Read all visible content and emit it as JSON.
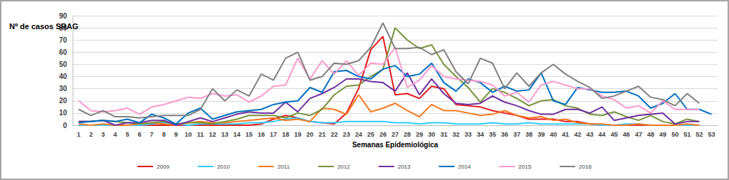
{
  "chart_data": {
    "type": "line",
    "y_label": "Nº de casos SRAG",
    "x_label": "Semanas Epidemiológica",
    "categories": [
      1,
      2,
      3,
      4,
      5,
      6,
      7,
      8,
      9,
      10,
      11,
      12,
      13,
      14,
      15,
      16,
      17,
      18,
      19,
      20,
      21,
      22,
      23,
      24,
      25,
      26,
      27,
      28,
      29,
      30,
      31,
      32,
      33,
      34,
      35,
      36,
      37,
      38,
      39,
      40,
      41,
      42,
      43,
      44,
      45,
      46,
      47,
      48,
      49,
      50,
      51,
      52,
      53
    ],
    "ylim": [
      0,
      90
    ],
    "yticks": [
      0,
      10,
      20,
      30,
      40,
      50,
      60,
      70,
      80,
      90
    ],
    "grid": true,
    "legend": "bottom",
    "series": [
      {
        "name": "2009",
        "color": "#e31a1c",
        "values": [
          0,
          0,
          0,
          0,
          0,
          0,
          0,
          0,
          0,
          0,
          0,
          0,
          0,
          0,
          0,
          1,
          5,
          8,
          6,
          3,
          2,
          1,
          10,
          30,
          62,
          73,
          25,
          26,
          22,
          32,
          30,
          17,
          16,
          15,
          12,
          10,
          8,
          5,
          5,
          5,
          3,
          3,
          1,
          0,
          0,
          0,
          0,
          0,
          0,
          0,
          0,
          0,
          null
        ]
      },
      {
        "name": "2010",
        "color": "#33ccff",
        "values": [
          0,
          0,
          0,
          0,
          0,
          0,
          1,
          2,
          1,
          0,
          1,
          1,
          1,
          1,
          2,
          2,
          3,
          5,
          6,
          3,
          2,
          2,
          3,
          3,
          3,
          3,
          2,
          2,
          1,
          2,
          2,
          1,
          1,
          1,
          2,
          1,
          1,
          2,
          1,
          1,
          1,
          1,
          1,
          0,
          0,
          1,
          1,
          0,
          0,
          0,
          0,
          0,
          null
        ]
      },
      {
        "name": "2011",
        "color": "#f47920",
        "values": [
          1,
          0,
          1,
          0,
          0,
          1,
          2,
          1,
          0,
          2,
          3,
          2,
          2,
          3,
          4,
          5,
          6,
          4,
          5,
          3,
          14,
          13,
          9,
          25,
          11,
          14,
          18,
          12,
          7,
          17,
          12,
          12,
          10,
          8,
          9,
          12,
          8,
          6,
          7,
          4,
          5,
          2,
          1,
          1,
          0,
          0,
          1,
          0,
          0,
          0,
          1,
          0,
          null
        ]
      },
      {
        "name": "2012",
        "color": "#77933c",
        "values": [
          3,
          3,
          4,
          3,
          2,
          1,
          2,
          3,
          1,
          2,
          2,
          1,
          3,
          5,
          8,
          8,
          8,
          6,
          10,
          8,
          13,
          25,
          32,
          33,
          40,
          46,
          80,
          70,
          63,
          66,
          50,
          40,
          31,
          19,
          30,
          27,
          22,
          16,
          20,
          21,
          16,
          14,
          9,
          8,
          11,
          7,
          4,
          8,
          3,
          1,
          5,
          3,
          null
        ]
      },
      {
        "name": "2013",
        "color": "#7030a0",
        "values": [
          3,
          3,
          4,
          0,
          2,
          2,
          4,
          4,
          0,
          3,
          6,
          3,
          6,
          9,
          11,
          10,
          10,
          19,
          11,
          22,
          26,
          31,
          38,
          38,
          36,
          35,
          28,
          43,
          25,
          38,
          26,
          18,
          17,
          18,
          24,
          19,
          16,
          12,
          9,
          9,
          13,
          13,
          10,
          15,
          4,
          6,
          8,
          9,
          10,
          1,
          3,
          3,
          null
        ]
      },
      {
        "name": "2014",
        "color": "#0070c0",
        "values": [
          2,
          3,
          4,
          3,
          5,
          2,
          9,
          6,
          1,
          10,
          14,
          5,
          8,
          11,
          12,
          13,
          17,
          19,
          20,
          31,
          27,
          44,
          45,
          40,
          38,
          46,
          49,
          40,
          42,
          51,
          35,
          28,
          38,
          35,
          27,
          32,
          28,
          29,
          43,
          20,
          17,
          31,
          29,
          27,
          27,
          28,
          24,
          14,
          18,
          26,
          13,
          13,
          9
        ]
      },
      {
        "name": "2015",
        "color": "#ff99cc",
        "values": [
          20,
          12,
          11,
          12,
          14,
          9,
          15,
          17,
          20,
          23,
          22,
          26,
          24,
          25,
          19,
          24,
          32,
          33,
          55,
          38,
          53,
          42,
          53,
          41,
          51,
          50,
          64,
          31,
          37,
          49,
          40,
          38,
          37,
          36,
          33,
          24,
          27,
          19,
          33,
          36,
          33,
          30,
          30,
          24,
          21,
          14,
          16,
          10,
          20,
          13,
          13,
          13,
          null
        ]
      },
      {
        "name": "2016",
        "color": "#808080",
        "values": [
          13,
          8,
          12,
          7,
          7,
          6,
          7,
          8,
          8,
          8,
          13,
          30,
          20,
          29,
          24,
          42,
          37,
          55,
          60,
          37,
          40,
          51,
          50,
          53,
          64,
          84,
          63,
          63,
          64,
          58,
          62,
          44,
          34,
          55,
          51,
          30,
          43,
          32,
          43,
          50,
          42,
          36,
          31,
          22,
          24,
          28,
          32,
          23,
          21,
          16,
          26,
          18,
          null
        ]
      }
    ]
  }
}
